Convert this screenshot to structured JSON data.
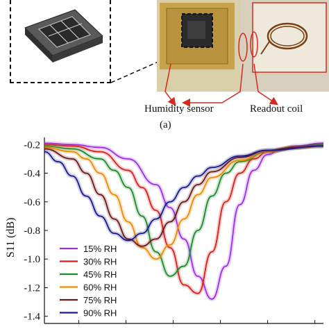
{
  "figure": {
    "caption_a": "(a)",
    "label_humidity_sensor": "Humidity sensor",
    "label_readout_coil": "Readout coil"
  },
  "colors": {
    "arrow": "#d42a20",
    "sensor_gold": "#c7a24a",
    "coil": "#7a3e12"
  },
  "chart_data": {
    "type": "line",
    "title": "",
    "xlabel": "",
    "ylabel": "S11 (dB)",
    "ylim": [
      -1.45,
      -0.15
    ],
    "yticks": [
      -0.2,
      -0.4,
      -0.6,
      -0.8,
      -1.0,
      -1.2,
      -1.4
    ],
    "ytick_labels": [
      "-0.2",
      "-0.4",
      "-0.6",
      "-0.8",
      "-1.0",
      "-1.2",
      "-1.4"
    ],
    "xlim": [
      0,
      100
    ],
    "grid": false,
    "legend_position": "bottom-left",
    "series": [
      {
        "name": "15% RH",
        "color": "#9b30e8",
        "x": [
          0,
          10,
          20,
          30,
          40,
          45,
          50,
          55,
          60,
          65,
          70,
          75,
          80,
          85,
          90,
          100
        ],
        "y": [
          -0.19,
          -0.2,
          -0.22,
          -0.3,
          -0.48,
          -0.64,
          -0.86,
          -1.12,
          -1.28,
          -1.05,
          -0.62,
          -0.38,
          -0.27,
          -0.23,
          -0.21,
          -0.19
        ]
      },
      {
        "name": "30% RH",
        "color": "#d91e1e",
        "x": [
          0,
          10,
          20,
          30,
          35,
          40,
          45,
          50,
          55,
          60,
          65,
          70,
          75,
          80,
          90,
          100
        ],
        "y": [
          -0.2,
          -0.21,
          -0.25,
          -0.38,
          -0.5,
          -0.66,
          -0.92,
          -1.18,
          -1.24,
          -0.95,
          -0.6,
          -0.4,
          -0.3,
          -0.25,
          -0.22,
          -0.2
        ]
      },
      {
        "name": "45% RH",
        "color": "#1e8a2e",
        "x": [
          0,
          10,
          20,
          25,
          30,
          35,
          40,
          45,
          50,
          55,
          60,
          65,
          70,
          80,
          90,
          100
        ],
        "y": [
          -0.21,
          -0.23,
          -0.3,
          -0.38,
          -0.5,
          -0.7,
          -0.95,
          -1.12,
          -1.05,
          -0.8,
          -0.56,
          -0.4,
          -0.32,
          -0.25,
          -0.22,
          -0.2
        ]
      },
      {
        "name": "60% RH",
        "color": "#f08a00",
        "x": [
          0,
          10,
          15,
          20,
          25,
          30,
          35,
          40,
          45,
          50,
          55,
          60,
          70,
          80,
          90,
          100
        ],
        "y": [
          -0.22,
          -0.25,
          -0.3,
          -0.4,
          -0.55,
          -0.74,
          -0.92,
          -1.0,
          -0.9,
          -0.72,
          -0.55,
          -0.43,
          -0.31,
          -0.25,
          -0.22,
          -0.21
        ]
      },
      {
        "name": "75% RH",
        "color": "#6b1a1a",
        "x": [
          0,
          10,
          15,
          20,
          25,
          30,
          35,
          40,
          45,
          50,
          55,
          60,
          70,
          80,
          90,
          100
        ],
        "y": [
          -0.23,
          -0.3,
          -0.4,
          -0.55,
          -0.72,
          -0.86,
          -0.91,
          -0.86,
          -0.74,
          -0.6,
          -0.48,
          -0.39,
          -0.29,
          -0.24,
          -0.22,
          -0.21
        ]
      },
      {
        "name": "90% RH",
        "color": "#1a1a8a",
        "x": [
          0,
          5,
          10,
          15,
          20,
          25,
          30,
          35,
          40,
          45,
          50,
          55,
          60,
          70,
          80,
          100
        ],
        "y": [
          -0.25,
          -0.32,
          -0.42,
          -0.56,
          -0.7,
          -0.82,
          -0.87,
          -0.82,
          -0.72,
          -0.6,
          -0.5,
          -0.42,
          -0.36,
          -0.28,
          -0.24,
          -0.21
        ]
      }
    ]
  }
}
